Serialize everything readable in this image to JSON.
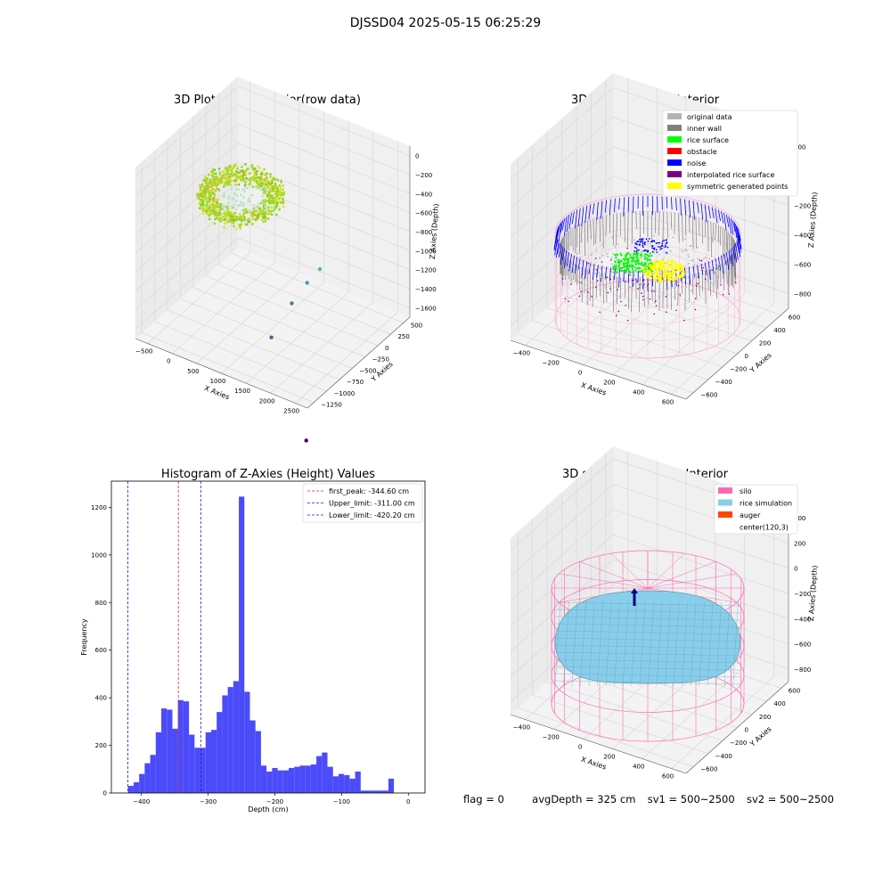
{
  "suptitle": "DJSSD04 2025-05-15 06:25:29",
  "status": {
    "flag": "flag = 0",
    "avg_depth": "avgDepth = 325 cm",
    "sv1": "sv1 = 500~2500",
    "sv2": "sv2 = 500~2500"
  },
  "colors": {
    "hist_bar": "#4b4bfa",
    "peak_line": "#d62728",
    "limit_line": "#1f1fd6",
    "silo_wire": "#ff69b4",
    "rice_sim": "#87ceeb",
    "auger": "#ff4500",
    "inner_wall": "#808080",
    "original": "#b4b4b4",
    "rice_surface": "#00ff00",
    "obstacle": "#ff0000",
    "noise": "#0000ff",
    "interp": "#800080",
    "symmetric": "#ffff00"
  },
  "chart_data": [
    {
      "type": "scatter",
      "dimension": "3d",
      "title": "3D Plot of Silo Interior(row data)",
      "xlabel": "X Axies",
      "ylabel": "Y Axies",
      "zlabel": "Z Axies (Depth)",
      "x_ticks": [
        "−500",
        "0",
        "500",
        "1000",
        "1500",
        "2000",
        "2500"
      ],
      "y_ticks": [
        "−1250",
        "−1000",
        "−750",
        "−500",
        "−250",
        "0",
        "250",
        "500"
      ],
      "z_ticks": [
        "0",
        "−200",
        "−400",
        "−600",
        "−800",
        "−1000",
        "−1200",
        "−1400",
        "−1600"
      ],
      "outliers": [
        {
          "x": 1300,
          "y": 250,
          "z": -800,
          "color": "#5fb3a8"
        },
        {
          "x": 1200,
          "y": 100,
          "z": -900,
          "color": "#4a9aa8"
        },
        {
          "x": 1100,
          "y": -100,
          "z": -1050,
          "color": "#3d7fa0"
        },
        {
          "x": 1000,
          "y": -400,
          "z": -1300,
          "color": "#3b6a98"
        },
        {
          "x": 2500,
          "y": -1200,
          "z": -1700,
          "color": "#440154"
        }
      ]
    },
    {
      "type": "scatter",
      "dimension": "3d",
      "title": "3D classify of Silo Interior",
      "xlabel": "X Axies",
      "ylabel": "Y Axies",
      "zlabel": "Z Axies (Depth)",
      "x_ticks": [
        "−400",
        "−200",
        "0",
        "200",
        "400",
        "600"
      ],
      "y_ticks": [
        "−600",
        "−400",
        "−200",
        "0",
        "200",
        "400",
        "600"
      ],
      "z_ticks": [
        "200",
        "0",
        "−200",
        "−400",
        "−600",
        "−800"
      ],
      "legend": [
        {
          "label": "original data",
          "color": "#b4b4b4"
        },
        {
          "label": "inner wall",
          "color": "#808080"
        },
        {
          "label": "rice surface",
          "color": "#00ff00"
        },
        {
          "label": "obstacle",
          "color": "#ff0000"
        },
        {
          "label": "noise",
          "color": "#0000ff"
        },
        {
          "label": "interpolated rice surface",
          "color": "#800080"
        },
        {
          "label": "symmetric generated points",
          "color": "#ffff00"
        }
      ],
      "legend_placement": "top-right"
    },
    {
      "type": "bar",
      "title": "Histogram of Z-Axies (Height) Values",
      "xlabel": "Depth (cm)",
      "ylabel": "Frequency",
      "xlim": [
        -445,
        25
      ],
      "ylim": [
        0,
        1310
      ],
      "x_ticks": [
        -400,
        -300,
        -200,
        -100,
        0
      ],
      "y_ticks": [
        0,
        200,
        400,
        600,
        800,
        1000,
        1200
      ],
      "bin_start": -420,
      "bin_width": 8.3,
      "values": [
        30,
        45,
        80,
        125,
        160,
        255,
        355,
        350,
        270,
        390,
        385,
        245,
        190,
        190,
        255,
        265,
        340,
        410,
        445,
        470,
        1245,
        425,
        305,
        260,
        115,
        90,
        105,
        95,
        95,
        105,
        110,
        115,
        115,
        120,
        155,
        170,
        110,
        70,
        80,
        75,
        60,
        90,
        10,
        10,
        10,
        10,
        10,
        60
      ],
      "vlines": [
        {
          "label": "first_peak: -344.60 cm",
          "x": -344.6,
          "color": "#d62728"
        },
        {
          "label": "Upper_limit: -311.00 cm",
          "x": -311.0,
          "color": "#1f1fd6"
        },
        {
          "label": "Lower_limit: -420.20 cm",
          "x": -420.2,
          "color": "#1f1fd6"
        }
      ],
      "legend_placement": "top-right",
      "grid": false
    },
    {
      "type": "surface",
      "dimension": "3d",
      "title": "3D simulation of Silo Interior",
      "xlabel": "X Axies",
      "ylabel": "Y Axies",
      "zlabel": "Z Axies (Depth)",
      "x_ticks": [
        "−400",
        "−200",
        "0",
        "200",
        "400",
        "600"
      ],
      "y_ticks": [
        "−600",
        "−400",
        "−200",
        "0",
        "200",
        "400",
        "600"
      ],
      "z_ticks": [
        "400",
        "200",
        "0",
        "−200",
        "−400",
        "−600",
        "−800"
      ],
      "legend": [
        {
          "label": "silo",
          "color": "#ff69b4"
        },
        {
          "label": "rice simulation",
          "color": "#87ceeb"
        },
        {
          "label": "auger",
          "color": "#ff4500"
        },
        {
          "label": "center(120,3)",
          "color": "#ffffff"
        }
      ],
      "legend_placement": "top-right"
    }
  ]
}
